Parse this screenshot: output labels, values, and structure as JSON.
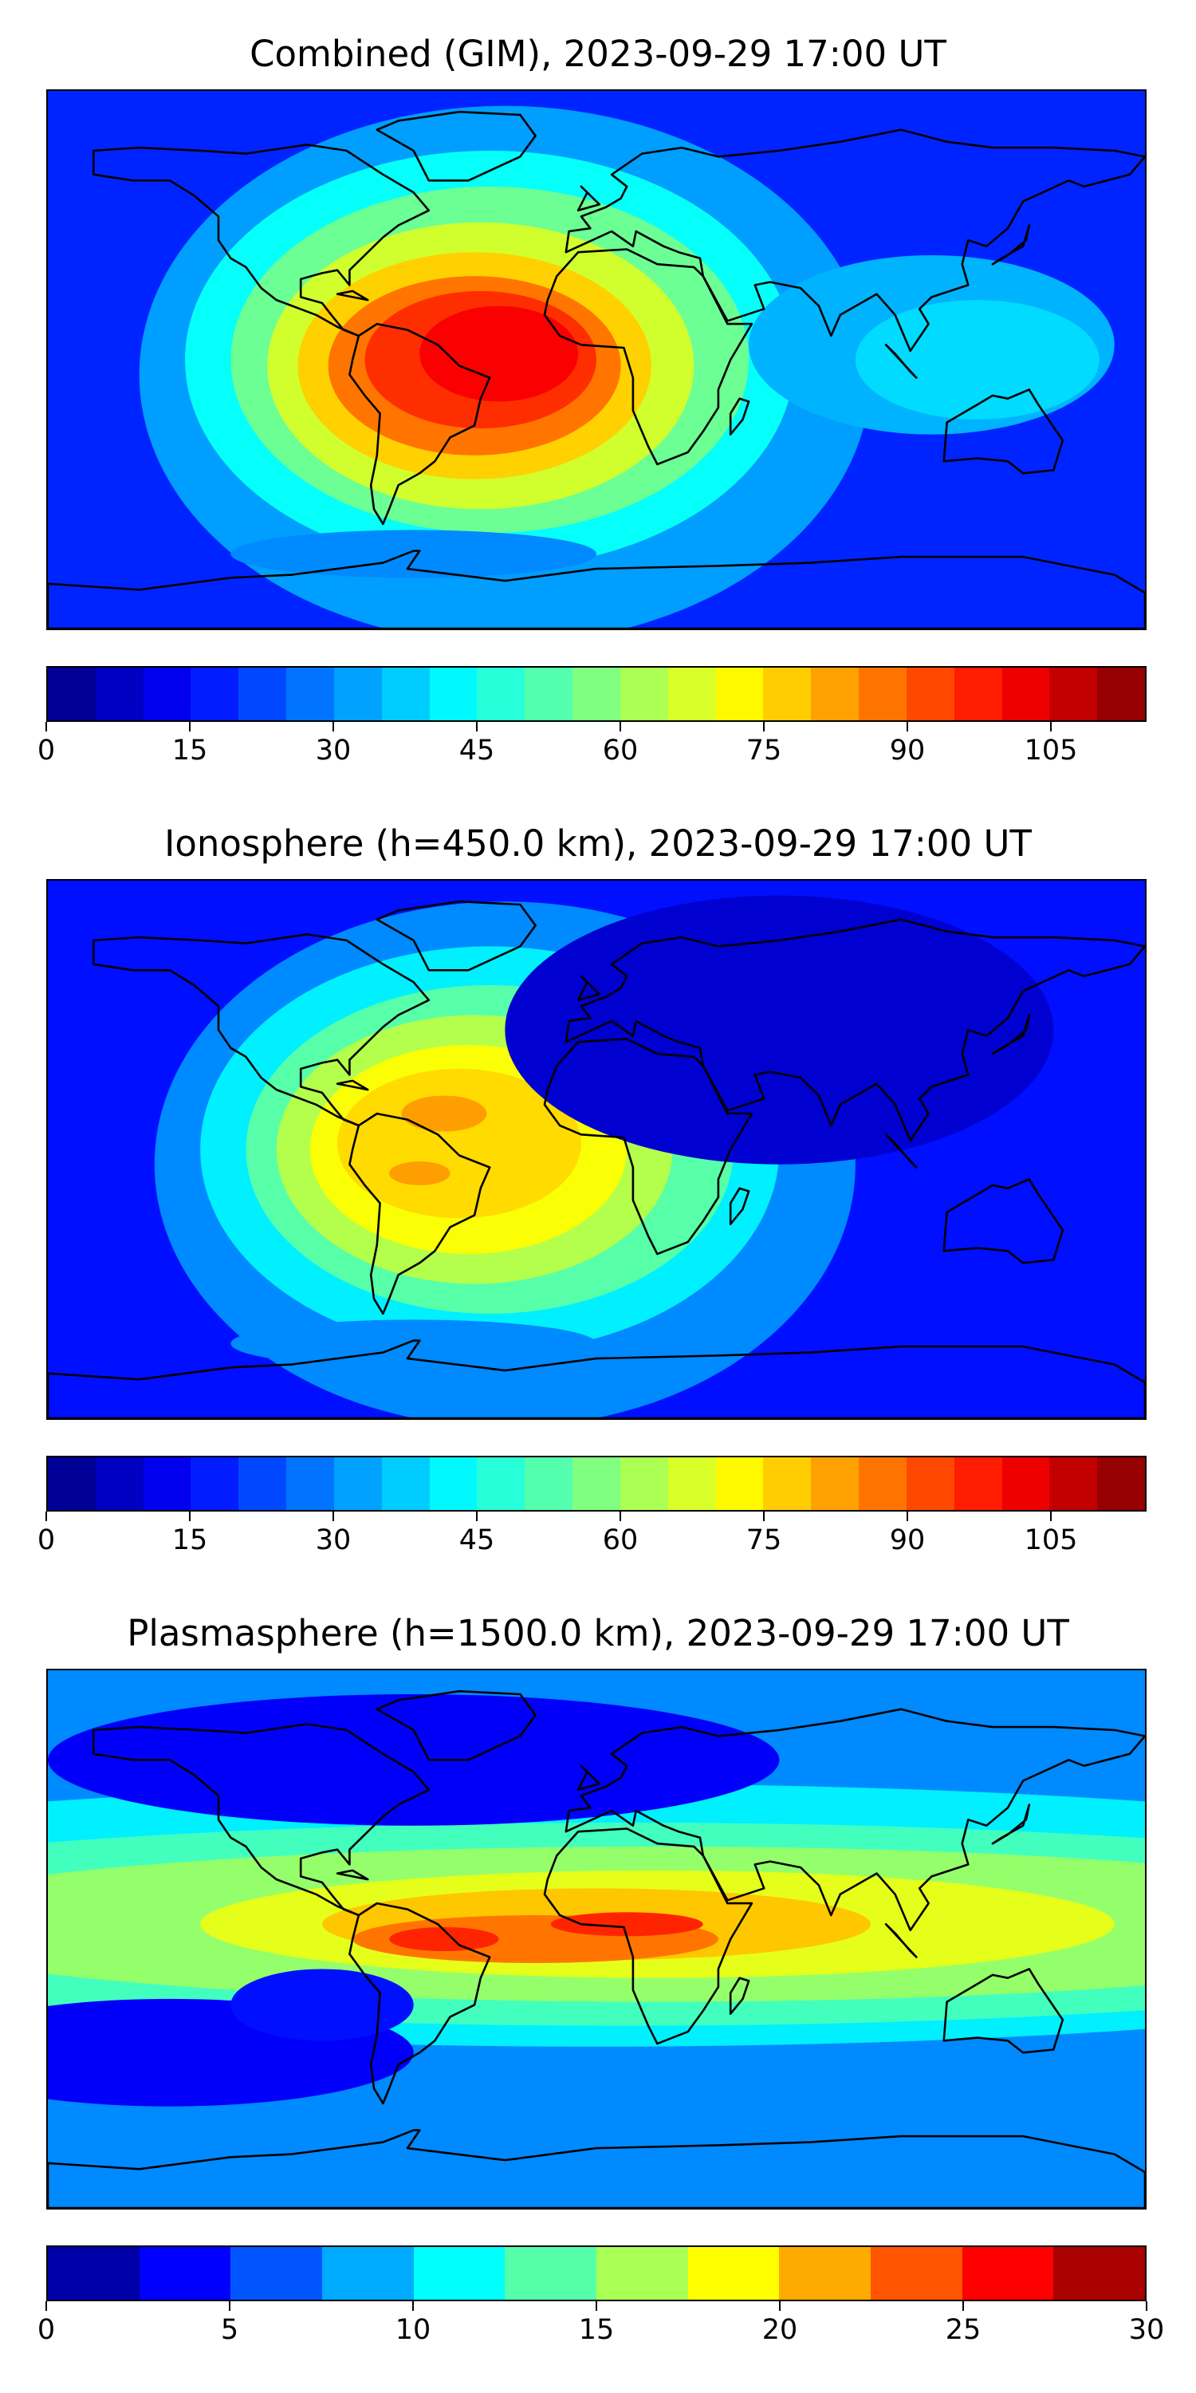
{
  "panels": [
    {
      "title": "Combined (GIM), 2023-09-29 17:00 UT",
      "variant": "combined",
      "colorbar": {
        "vmin": 0,
        "vmax": 115,
        "ticks": [
          "0",
          "15",
          "30",
          "45",
          "60",
          "75",
          "90",
          "105"
        ],
        "tick_values": [
          0,
          15,
          30,
          45,
          60,
          75,
          90,
          105
        ],
        "levels": 23
      }
    },
    {
      "title": "Ionosphere  (h=450.0 km), 2023-09-29 17:00 UT",
      "variant": "ionosphere",
      "colorbar": {
        "vmin": 0,
        "vmax": 115,
        "ticks": [
          "0",
          "15",
          "30",
          "45",
          "60",
          "75",
          "90",
          "105"
        ],
        "tick_values": [
          0,
          15,
          30,
          45,
          60,
          75,
          90,
          105
        ],
        "levels": 23
      }
    },
    {
      "title": "Plasmasphere (h=1500.0 km), 2023-09-29 17:00 UT",
      "variant": "plasmasphere",
      "colorbar": {
        "vmin": 0,
        "vmax": 30,
        "ticks": [
          "0",
          "5",
          "10",
          "15",
          "20",
          "25",
          "30"
        ],
        "tick_values": [
          0,
          5,
          10,
          15,
          20,
          25,
          30
        ],
        "levels": 12
      }
    }
  ],
  "colormap": "jet"
}
